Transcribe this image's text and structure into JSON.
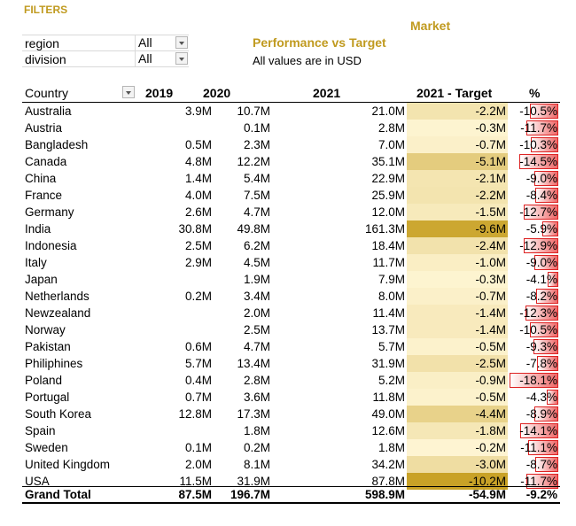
{
  "filters": {
    "title": "FILTERS",
    "items": [
      {
        "label": "region",
        "value": "All"
      },
      {
        "label": "division",
        "value": "All"
      }
    ]
  },
  "header": {
    "market": "Market",
    "title": "Performance vs Target",
    "subtitle": "All values are in USD"
  },
  "table": {
    "columns": [
      "Country",
      "2019",
      "2020",
      "2021",
      "2021 - Target",
      "%"
    ],
    "rows": [
      {
        "country": "Australia",
        "y2019": "3.9M",
        "y2020": "10.7M",
        "y2021": "21.0M",
        "target": "-2.2M",
        "pct": "-10.5%",
        "tgt_val": -2.2,
        "pct_val": -10.5
      },
      {
        "country": "Austria",
        "y2019": "",
        "y2020": "0.1M",
        "y2021": "2.8M",
        "target": "-0.3M",
        "pct": "-11.7%",
        "tgt_val": -0.3,
        "pct_val": -11.7
      },
      {
        "country": "Bangladesh",
        "y2019": "0.5M",
        "y2020": "2.3M",
        "y2021": "7.0M",
        "target": "-0.7M",
        "pct": "-10.3%",
        "tgt_val": -0.7,
        "pct_val": -10.3
      },
      {
        "country": "Canada",
        "y2019": "4.8M",
        "y2020": "12.2M",
        "y2021": "35.1M",
        "target": "-5.1M",
        "pct": "-14.5%",
        "tgt_val": -5.1,
        "pct_val": -14.5
      },
      {
        "country": "China",
        "y2019": "1.4M",
        "y2020": "5.4M",
        "y2021": "22.9M",
        "target": "-2.1M",
        "pct": "-9.0%",
        "tgt_val": -2.1,
        "pct_val": -9.0
      },
      {
        "country": "France",
        "y2019": "4.0M",
        "y2020": "7.5M",
        "y2021": "25.9M",
        "target": "-2.2M",
        "pct": "-8.4%",
        "tgt_val": -2.2,
        "pct_val": -8.4
      },
      {
        "country": "Germany",
        "y2019": "2.6M",
        "y2020": "4.7M",
        "y2021": "12.0M",
        "target": "-1.5M",
        "pct": "-12.7%",
        "tgt_val": -1.5,
        "pct_val": -12.7
      },
      {
        "country": "India",
        "y2019": "30.8M",
        "y2020": "49.8M",
        "y2021": "161.3M",
        "target": "-9.6M",
        "pct": "-5.9%",
        "tgt_val": -9.6,
        "pct_val": -5.9
      },
      {
        "country": "Indonesia",
        "y2019": "2.5M",
        "y2020": "6.2M",
        "y2021": "18.4M",
        "target": "-2.4M",
        "pct": "-12.9%",
        "tgt_val": -2.4,
        "pct_val": -12.9
      },
      {
        "country": "Italy",
        "y2019": "2.9M",
        "y2020": "4.5M",
        "y2021": "11.7M",
        "target": "-1.0M",
        "pct": "-9.0%",
        "tgt_val": -1.0,
        "pct_val": -9.0
      },
      {
        "country": "Japan",
        "y2019": "",
        "y2020": "1.9M",
        "y2021": "7.9M",
        "target": "-0.3M",
        "pct": "-4.1%",
        "tgt_val": -0.3,
        "pct_val": -4.1
      },
      {
        "country": "Netherlands",
        "y2019": "0.2M",
        "y2020": "3.4M",
        "y2021": "8.0M",
        "target": "-0.7M",
        "pct": "-8.2%",
        "tgt_val": -0.7,
        "pct_val": -8.2
      },
      {
        "country": "Newzealand",
        "y2019": "",
        "y2020": "2.0M",
        "y2021": "11.4M",
        "target": "-1.4M",
        "pct": "-12.3%",
        "tgt_val": -1.4,
        "pct_val": -12.3
      },
      {
        "country": "Norway",
        "y2019": "",
        "y2020": "2.5M",
        "y2021": "13.7M",
        "target": "-1.4M",
        "pct": "-10.5%",
        "tgt_val": -1.4,
        "pct_val": -10.5
      },
      {
        "country": "Pakistan",
        "y2019": "0.6M",
        "y2020": "4.7M",
        "y2021": "5.7M",
        "target": "-0.5M",
        "pct": "-9.3%",
        "tgt_val": -0.5,
        "pct_val": -9.3
      },
      {
        "country": "Philiphines",
        "y2019": "5.7M",
        "y2020": "13.4M",
        "y2021": "31.9M",
        "target": "-2.5M",
        "pct": "-7.8%",
        "tgt_val": -2.5,
        "pct_val": -7.8
      },
      {
        "country": "Poland",
        "y2019": "0.4M",
        "y2020": "2.8M",
        "y2021": "5.2M",
        "target": "-0.9M",
        "pct": "-18.1%",
        "tgt_val": -0.9,
        "pct_val": -18.1
      },
      {
        "country": "Portugal",
        "y2019": "0.7M",
        "y2020": "3.6M",
        "y2021": "11.8M",
        "target": "-0.5M",
        "pct": "-4.3%",
        "tgt_val": -0.5,
        "pct_val": -4.3
      },
      {
        "country": "South Korea",
        "y2019": "12.8M",
        "y2020": "17.3M",
        "y2021": "49.0M",
        "target": "-4.4M",
        "pct": "-8.9%",
        "tgt_val": -4.4,
        "pct_val": -8.9
      },
      {
        "country": "Spain",
        "y2019": "",
        "y2020": "1.8M",
        "y2021": "12.6M",
        "target": "-1.8M",
        "pct": "-14.1%",
        "tgt_val": -1.8,
        "pct_val": -14.1
      },
      {
        "country": "Sweden",
        "y2019": "0.1M",
        "y2020": "0.2M",
        "y2021": "1.8M",
        "target": "-0.2M",
        "pct": "-11.1%",
        "tgt_val": -0.2,
        "pct_val": -11.1
      },
      {
        "country": "United Kingdom",
        "y2019": "2.0M",
        "y2020": "8.1M",
        "y2021": "34.2M",
        "target": "-3.0M",
        "pct": "-8.7%",
        "tgt_val": -3.0,
        "pct_val": -8.7
      },
      {
        "country": "USA",
        "y2019": "11.5M",
        "y2020": "31.9M",
        "y2021": "87.8M",
        "target": "-10.2M",
        "pct": "-11.7%",
        "tgt_val": -10.2,
        "pct_val": -11.7
      }
    ],
    "grand_total": {
      "label": "Grand Total",
      "y2019": "87.5M",
      "y2020": "196.7M",
      "y2021": "598.9M",
      "target": "-54.9M",
      "pct": "-9.2%"
    }
  },
  "colors": {
    "title_gold": "#c09a1f",
    "heat_light": "#fff6d5",
    "heat_dark": "#c9a227",
    "pct_bar": "#ef6868"
  }
}
